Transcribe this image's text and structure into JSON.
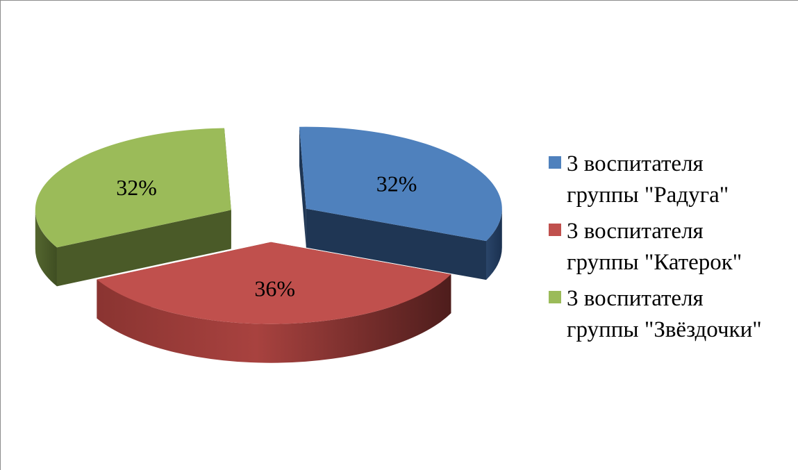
{
  "chart_data": {
    "type": "pie",
    "style": "3d-exploded",
    "categories": [
      "3 воспитателя группы \"Радуга\"",
      "3 воспитателя группы \"Катерок\"",
      "3 воспитателя группы \"Звёздочки\""
    ],
    "values": [
      32,
      36,
      32
    ],
    "value_labels": [
      "32%",
      "36%",
      "32%"
    ],
    "colors": [
      "#4f81bd",
      "#c0504d",
      "#9bbb59"
    ],
    "legend_position": "right",
    "legend": [
      {
        "line1": "3 воспитателя",
        "line2": "группы \"Радуга\"",
        "color": "#4f81bd"
      },
      {
        "line1": "3 воспитателя",
        "line2": "группы \"Катерок\"",
        "color": "#c0504d"
      },
      {
        "line1": "3 воспитателя",
        "line2": "группы \"Звёздочки\"",
        "color": "#9bbb59"
      }
    ]
  }
}
